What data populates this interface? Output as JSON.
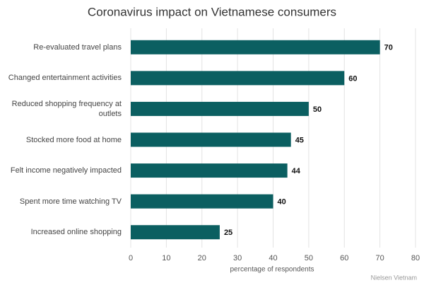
{
  "chart_data": {
    "type": "bar",
    "orientation": "horizontal",
    "title": "Coronavirus impact on Vietnamese consumers",
    "categories": [
      "Re-evaluated travel plans",
      "Changed entertainment activities",
      "Reduced shopping frequency at outlets",
      "Stocked more food at home",
      "Felt income negatively impacted",
      "Spent more time watching TV",
      "Increased online shopping"
    ],
    "values": [
      70,
      60,
      50,
      45,
      44,
      40,
      25
    ],
    "color": "#0b5f61",
    "xlabel": "percentage of respondents",
    "xlim": [
      0,
      80
    ],
    "xticks": [
      0,
      10,
      20,
      30,
      40,
      50,
      60,
      70,
      80
    ],
    "grid": true,
    "source": "Nielsen Vietnam"
  }
}
